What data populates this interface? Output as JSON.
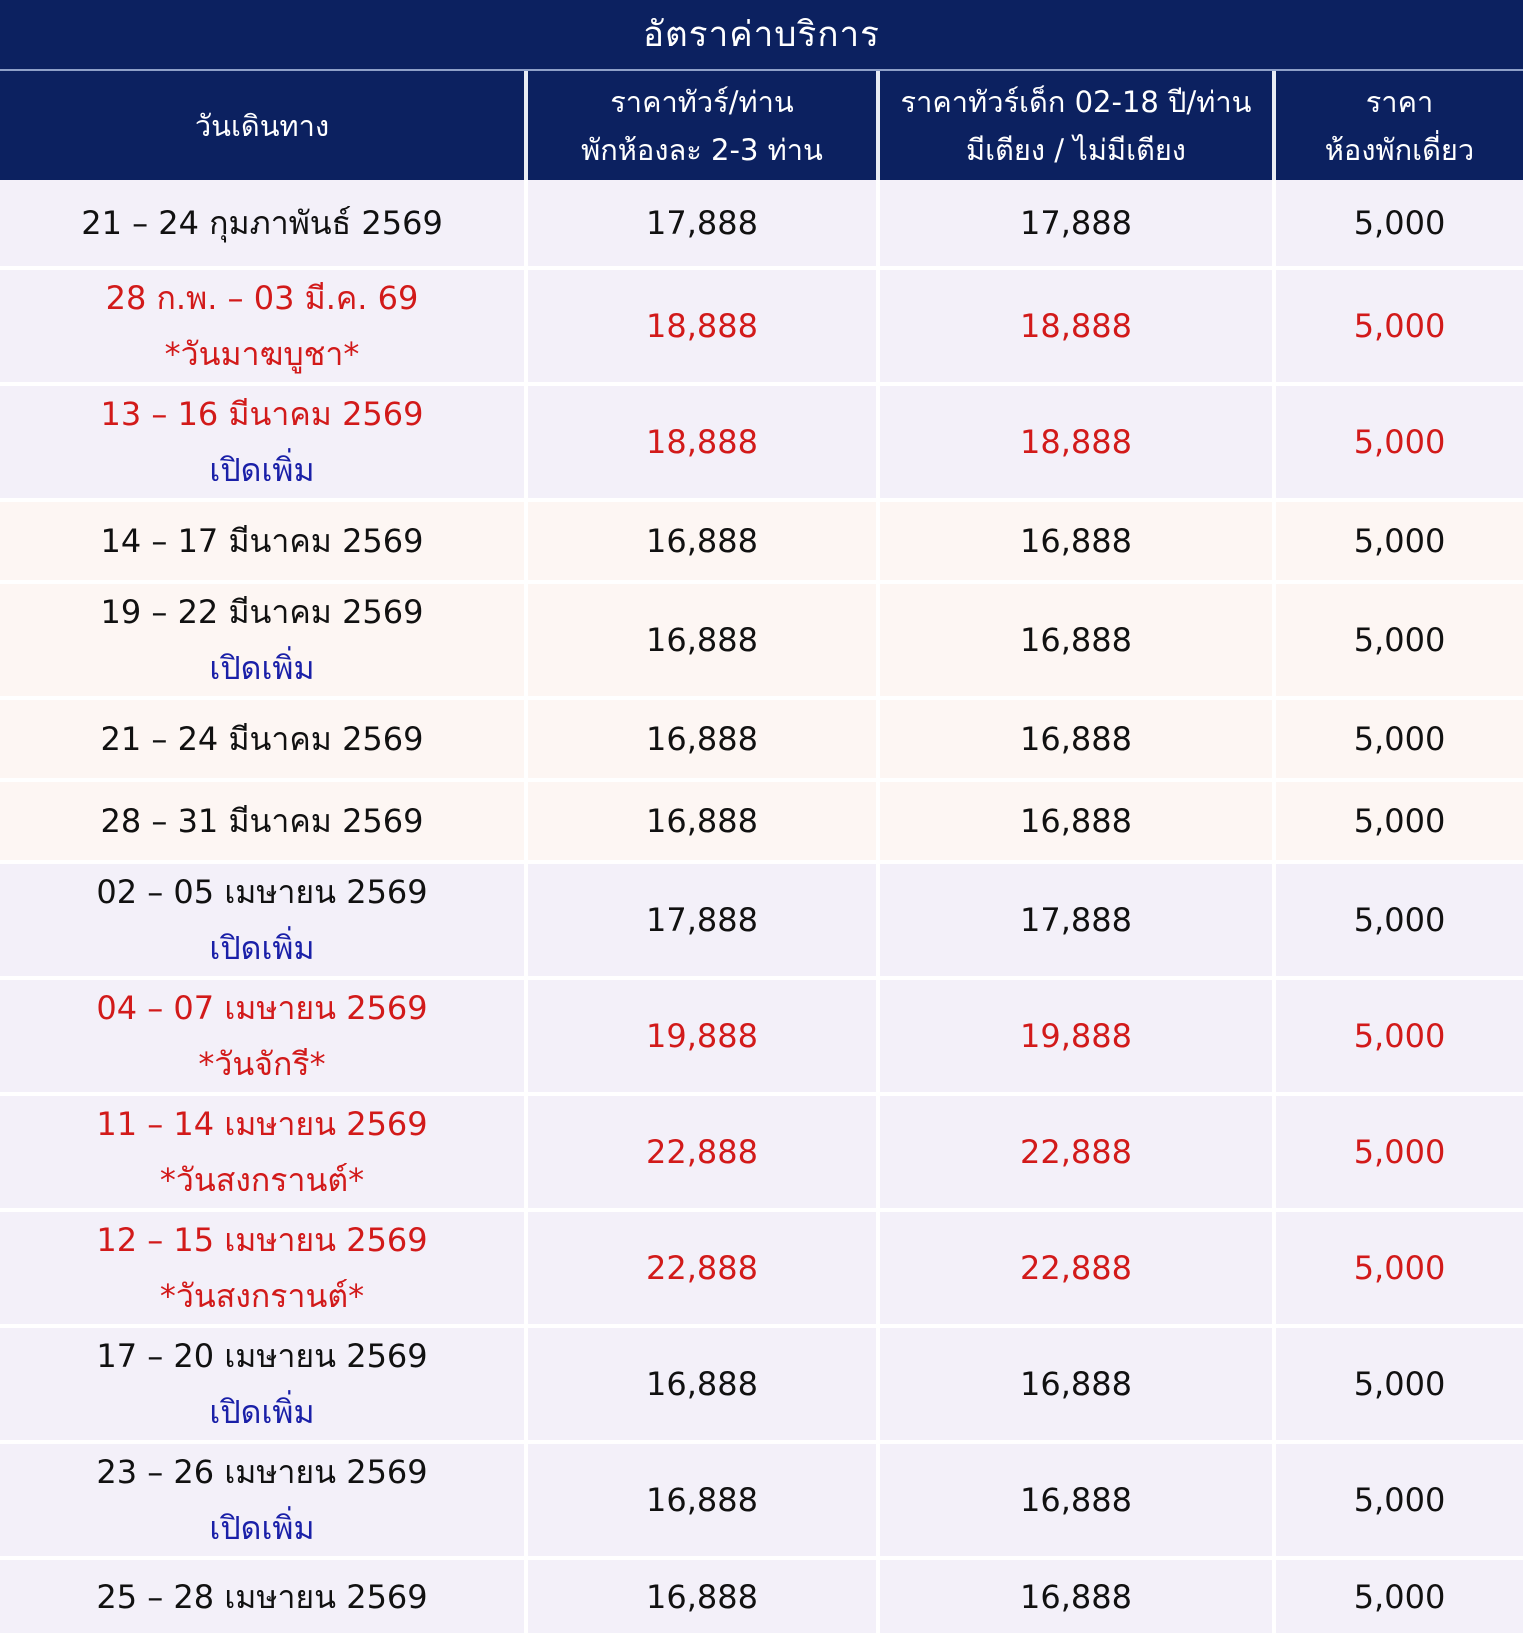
{
  "title": "อัตราค่าบริการ",
  "headers": {
    "col1": "วันเดินทาง",
    "col2_line1": "ราคาทัวร์/ท่าน",
    "col2_line2": "พักห้องละ 2-3 ท่าน",
    "col3_line1": "ราคาทัวร์เด็ก 02-18 ปี/ท่าน",
    "col3_line2": "มีเตียง / ไม่มีเตียง",
    "col4_line1": "ราคา",
    "col4_line2": "ห้องพักเดี่ยว"
  },
  "rows": [
    {
      "date": "21 – 24 กุมภาพันธ์ 2569",
      "note": "",
      "adult": "17,888",
      "child": "17,888",
      "single": "5,000"
    },
    {
      "date": "28 ก.พ. – 03 มี.ค. 69",
      "note": "*วันมาฆบูชา*",
      "adult": "18,888",
      "child": "18,888",
      "single": "5,000"
    },
    {
      "date": "13 – 16 มีนาคม 2569",
      "note": "เปิดเพิ่ม",
      "adult": "18,888",
      "child": "18,888",
      "single": "5,000"
    },
    {
      "date": "14 – 17 มีนาคม 2569",
      "note": "",
      "adult": "16,888",
      "child": "16,888",
      "single": "5,000"
    },
    {
      "date": "19 – 22 มีนาคม 2569",
      "note": "เปิดเพิ่ม",
      "adult": "16,888",
      "child": "16,888",
      "single": "5,000"
    },
    {
      "date": "21 – 24 มีนาคม 2569",
      "note": "",
      "adult": "16,888",
      "child": "16,888",
      "single": "5,000"
    },
    {
      "date": "28 – 31 มีนาคม 2569",
      "note": "",
      "adult": "16,888",
      "child": "16,888",
      "single": "5,000"
    },
    {
      "date": "02 – 05 เมษายน 2569",
      "note": "เปิดเพิ่ม",
      "adult": "17,888",
      "child": "17,888",
      "single": "5,000"
    },
    {
      "date": "04 – 07 เมษายน 2569",
      "note": "*วันจักรี*",
      "adult": "19,888",
      "child": "19,888",
      "single": "5,000"
    },
    {
      "date": "11 – 14 เมษายน 2569",
      "note": "*วันสงกรานต์*",
      "adult": "22,888",
      "child": "22,888",
      "single": "5,000"
    },
    {
      "date": "12 – 15 เมษายน 2569",
      "note": "*วันสงกรานต์*",
      "adult": "22,888",
      "child": "22,888",
      "single": "5,000"
    },
    {
      "date": "17 – 20 เมษายน 2569",
      "note": "เปิดเพิ่ม",
      "adult": "16,888",
      "child": "16,888",
      "single": "5,000"
    },
    {
      "date": "23 – 26 เมษายน 2569",
      "note": "เปิดเพิ่ม",
      "adult": "16,888",
      "child": "16,888",
      "single": "5,000"
    },
    {
      "date": "25 – 28 เมษายน 2569",
      "note": "",
      "adult": "16,888",
      "child": "16,888",
      "single": "5,000"
    }
  ],
  "colors": {
    "header_bg": "#0c2160",
    "highlight_red": "#d21a1a",
    "note_blue": "#1a20a8"
  }
}
